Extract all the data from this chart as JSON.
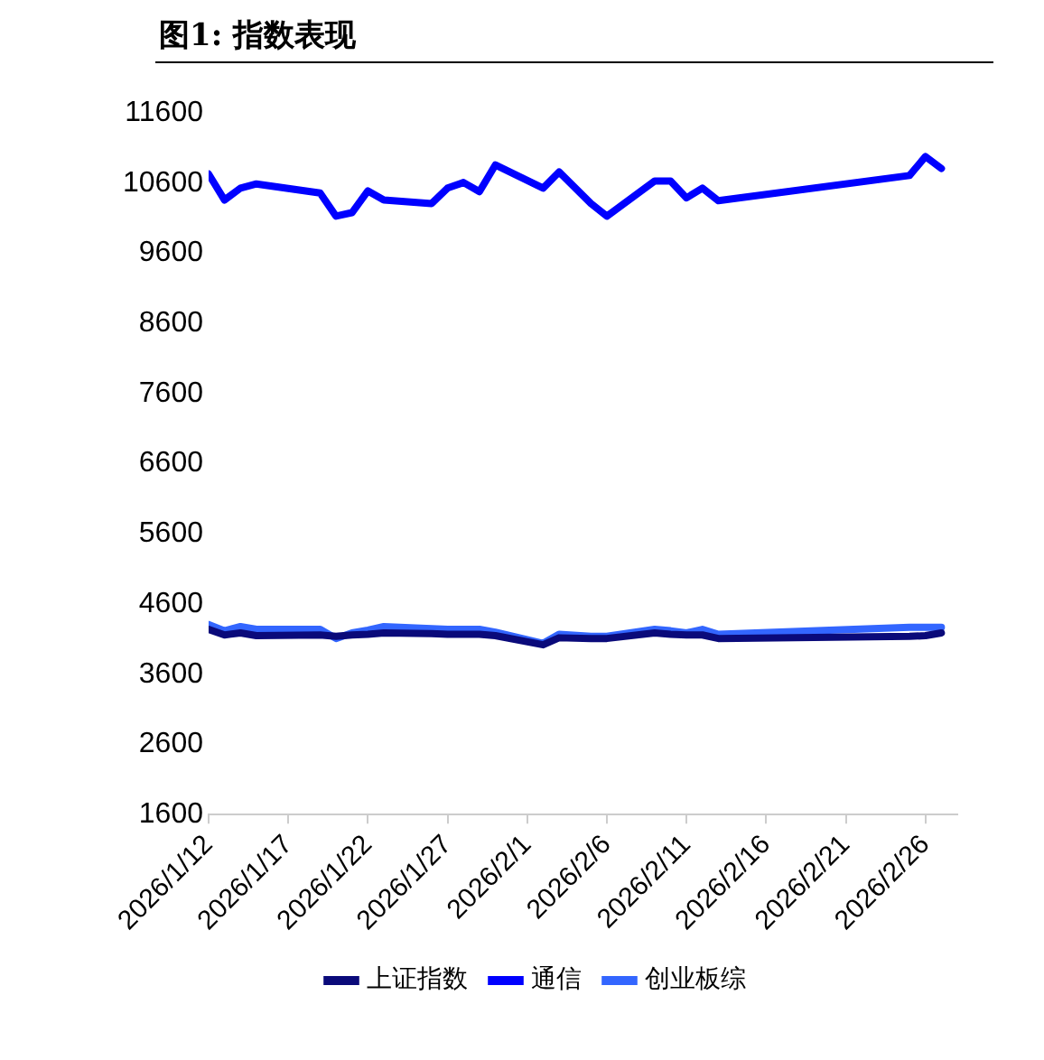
{
  "chart_data": {
    "type": "line",
    "title": "图1:  指数表现",
    "x": [
      "2026-01-12",
      "2026-01-13",
      "2026-01-14",
      "2026-01-15",
      "2026-01-19",
      "2026-01-20",
      "2026-01-21",
      "2026-01-22",
      "2026-01-23",
      "2026-01-26",
      "2026-01-27",
      "2026-01-28",
      "2026-01-29",
      "2026-01-30",
      "2026-02-02",
      "2026-02-03",
      "2026-02-05",
      "2026-02-06",
      "2026-02-09",
      "2026-02-10",
      "2026-02-11",
      "2026-02-12",
      "2026-02-13",
      "2026-02-25",
      "2026-02-26",
      "2026-02-27"
    ],
    "series": [
      {
        "name": "上证指数",
        "color": "#0a0a7a",
        "values": [
          4240,
          4160,
          4190,
          4150,
          4160,
          4140,
          4160,
          4170,
          4190,
          4180,
          4170,
          4170,
          4170,
          4150,
          4020,
          4120,
          4110,
          4110,
          4190,
          4170,
          4160,
          4160,
          4110,
          4140,
          4150,
          4190
        ]
      },
      {
        "name": "通信",
        "color": "#0000ff",
        "values": [
          10730,
          10360,
          10530,
          10590,
          10460,
          10130,
          10180,
          10490,
          10360,
          10310,
          10530,
          10610,
          10480,
          10860,
          10530,
          10760,
          10310,
          10130,
          10630,
          10630,
          10390,
          10530,
          10350,
          10710,
          10980,
          10810
        ]
      },
      {
        "name": "创业板综",
        "color": "#3366ff",
        "values": [
          4310,
          4220,
          4280,
          4240,
          4240,
          4110,
          4190,
          4230,
          4280,
          4250,
          4240,
          4240,
          4240,
          4200,
          4040,
          4170,
          4140,
          4140,
          4240,
          4220,
          4190,
          4240,
          4170,
          4270,
          4270,
          4270
        ]
      }
    ],
    "xlim": [
      "2026-01-12",
      "2026-02-28"
    ],
    "xticks": [
      {
        "value": "2026-01-12",
        "label": "2026/1/12"
      },
      {
        "value": "2026-01-17",
        "label": "2026/1/17"
      },
      {
        "value": "2026-01-22",
        "label": "2026/1/22"
      },
      {
        "value": "2026-01-27",
        "label": "2026/1/27"
      },
      {
        "value": "2026-02-01",
        "label": "2026/2/1"
      },
      {
        "value": "2026-02-06",
        "label": "2026/2/6"
      },
      {
        "value": "2026-02-11",
        "label": "2026/2/11"
      },
      {
        "value": "2026-02-16",
        "label": "2026/2/16"
      },
      {
        "value": "2026-02-21",
        "label": "2026/2/21"
      },
      {
        "value": "2026-02-26",
        "label": "2026/2/26"
      }
    ],
    "ylim": [
      1600,
      11600
    ],
    "yticks": [
      1600,
      2600,
      3600,
      4600,
      5600,
      6600,
      7600,
      8600,
      9600,
      10600,
      11600
    ],
    "grid": false,
    "legend": "bottom",
    "marker": "none",
    "line_style": "solid"
  }
}
